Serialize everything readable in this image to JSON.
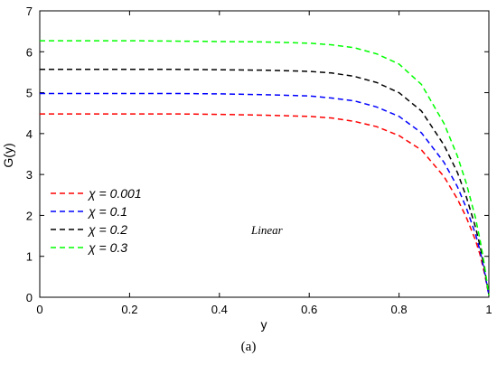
{
  "chart_data": {
    "type": "line",
    "xlabel": "y",
    "ylabel": "G(y)",
    "xlim": [
      0,
      1
    ],
    "ylim": [
      0,
      7
    ],
    "xticks": [
      0,
      0.2,
      0.4,
      0.6,
      0.8,
      1
    ],
    "xtick_labels": [
      "0",
      "0.2",
      "0.4",
      "0.6",
      "0.8",
      "1"
    ],
    "yticks": [
      0,
      1,
      2,
      3,
      4,
      5,
      6,
      7
    ],
    "ytick_labels": [
      "0",
      "1",
      "2",
      "3",
      "4",
      "5",
      "6",
      "7"
    ],
    "grid": false,
    "legend_position": "middle-left",
    "line_style": "dashed",
    "annotation": "Linear",
    "series": [
      {
        "name": "χ = 0.001",
        "color": "#ff0000",
        "x": [
          0,
          0.1,
          0.2,
          0.3,
          0.4,
          0.5,
          0.6,
          0.65,
          0.7,
          0.75,
          0.8,
          0.85,
          0.9,
          0.93,
          0.95,
          0.97,
          0.98,
          0.99,
          1.0
        ],
        "y": [
          4.48,
          4.48,
          4.48,
          4.48,
          4.47,
          4.45,
          4.42,
          4.38,
          4.3,
          4.17,
          3.95,
          3.6,
          2.95,
          2.4,
          1.95,
          1.4,
          1.05,
          0.6,
          0.05
        ]
      },
      {
        "name": "χ = 0.1",
        "color": "#0000ff",
        "x": [
          0,
          0.1,
          0.2,
          0.3,
          0.4,
          0.5,
          0.6,
          0.65,
          0.7,
          0.75,
          0.8,
          0.85,
          0.9,
          0.93,
          0.95,
          0.97,
          0.98,
          0.99,
          1.0
        ],
        "y": [
          4.98,
          4.98,
          4.98,
          4.98,
          4.97,
          4.95,
          4.92,
          4.87,
          4.8,
          4.65,
          4.42,
          4.02,
          3.3,
          2.7,
          2.18,
          1.55,
          1.15,
          0.65,
          0.05
        ]
      },
      {
        "name": "χ = 0.2",
        "color": "#000000",
        "x": [
          0,
          0.1,
          0.2,
          0.3,
          0.4,
          0.5,
          0.6,
          0.65,
          0.7,
          0.75,
          0.8,
          0.85,
          0.9,
          0.93,
          0.95,
          0.97,
          0.98,
          0.99,
          1.0
        ],
        "y": [
          5.57,
          5.57,
          5.57,
          5.57,
          5.56,
          5.55,
          5.52,
          5.48,
          5.4,
          5.25,
          5.0,
          4.55,
          3.72,
          3.05,
          2.45,
          1.72,
          1.27,
          0.72,
          0.05
        ]
      },
      {
        "name": "χ = 0.3",
        "color": "#00ff00",
        "x": [
          0,
          0.1,
          0.2,
          0.3,
          0.4,
          0.5,
          0.6,
          0.65,
          0.7,
          0.75,
          0.8,
          0.85,
          0.9,
          0.93,
          0.95,
          0.97,
          0.98,
          0.99,
          1.0
        ],
        "y": [
          6.27,
          6.27,
          6.27,
          6.26,
          6.25,
          6.24,
          6.21,
          6.17,
          6.1,
          5.95,
          5.7,
          5.2,
          4.25,
          3.45,
          2.78,
          1.95,
          1.42,
          0.8,
          0.05
        ]
      }
    ]
  },
  "caption": "(a)"
}
